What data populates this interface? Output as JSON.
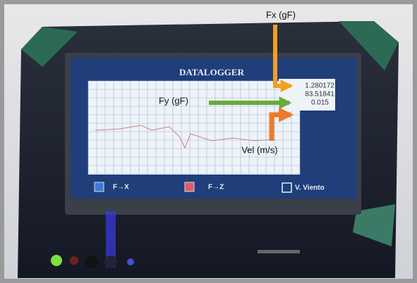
{
  "screen": {
    "title": "DATALOGGER",
    "readouts": [
      "1.280172",
      "83.51841",
      "0.015"
    ],
    "legend": [
      "F→X",
      "F→Z",
      "V. Viento"
    ]
  },
  "annotations": {
    "fx": "Fx (gF)",
    "fy": "Fy (gF)",
    "vel": "Vel (m/s)"
  }
}
